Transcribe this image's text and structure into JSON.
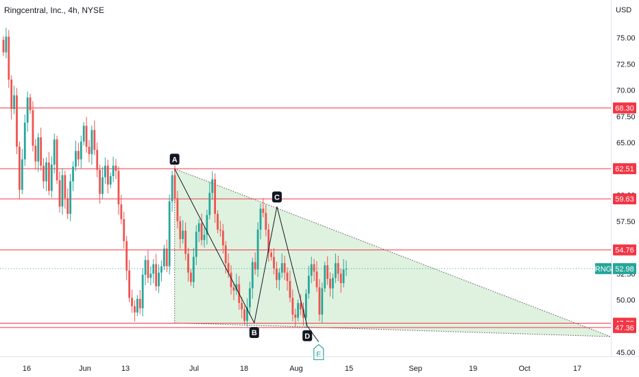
{
  "header": {
    "title": "Ringcentral, Inc., 4h, NYSE",
    "currency": "USD"
  },
  "chart_data": {
    "type": "candlestick",
    "ylim": [
      44.5,
      78.5
    ],
    "y_ticks": [
      45,
      47.5,
      50,
      52.5,
      55,
      57.5,
      60,
      62.5,
      65,
      67.5,
      70,
      72.5,
      75
    ],
    "y_tick_labels": [
      "45.00",
      "47.50",
      "50.00",
      "52.50",
      "55.00",
      "57.50",
      "60.00",
      "62.50",
      "65.00",
      "67.50",
      "70.00",
      "72.50",
      "75.00"
    ],
    "x_ticks": [
      "16",
      "Jun",
      "13",
      "Jul",
      "18",
      "Aug",
      "15",
      "Sep",
      "19",
      "Oct",
      "17"
    ],
    "horizontal_levels": [
      {
        "value": 68.3,
        "label": "68.30"
      },
      {
        "value": 62.51,
        "label": "62.51"
      },
      {
        "value": 59.63,
        "label": "59.63"
      },
      {
        "value": 54.76,
        "label": "54.76"
      },
      {
        "value": 47.78,
        "label": "47.78"
      },
      {
        "value": 47.36,
        "label": "47.36"
      }
    ],
    "current_price": {
      "symbol": "RNG",
      "value": 52.98,
      "label": "52.98"
    },
    "pattern_points": [
      {
        "label": "A",
        "date": "2022-06-24",
        "price": 62.5
      },
      {
        "label": "B",
        "date": "2022-07-15",
        "price": 47.8
      },
      {
        "label": "C",
        "date": "2022-07-21",
        "price": 58.9
      },
      {
        "label": "D",
        "date": "2022-07-29",
        "price": 47.5
      },
      {
        "label": "E",
        "date": "2022-08-01",
        "price": 46.0
      }
    ],
    "triangle": {
      "apex_date": "2022-10-17",
      "apex_price": 46.5,
      "upper_start": 62.5,
      "lower_start": 47.8
    },
    "closes": [
      73.6,
      75.1,
      71.0,
      68.2,
      69.5,
      64.6,
      60.5,
      63.4,
      66.9,
      69.3,
      68.1,
      64.7,
      63.2,
      65.5,
      62.8,
      61.3,
      63.1,
      60.4,
      62.9,
      65.3,
      61.4,
      58.9,
      61.9,
      59.7,
      58.2,
      61.3,
      62.7,
      64.2,
      63.4,
      65.1,
      66.6,
      64.6,
      63.9,
      66.2,
      64.3,
      62.4,
      60.1,
      61.7,
      62.8,
      61.0,
      61.8,
      62.8,
      62.3,
      59.1,
      57.7,
      55.6,
      52.8,
      50.2,
      49.4,
      48.8,
      50.1,
      49.2,
      52.4,
      53.8,
      52.1,
      52.5,
      53.4,
      51.3,
      52.6,
      53.2,
      54.9,
      53.2,
      59.4,
      61.9,
      59.7,
      57.5,
      55.8,
      56.6,
      54.4,
      52.6,
      51.7,
      54.1,
      56.5,
      57.3,
      55.7,
      56.2,
      58.1,
      60.2,
      61.5,
      58.2,
      56.7,
      56.6,
      55.2,
      53.5,
      52.6,
      51.2,
      50.9,
      51.5,
      49.7,
      49.1,
      48.0,
      49.3,
      51.1,
      53.6,
      52.9,
      56.7,
      58.7,
      58.3,
      56.7,
      54.5,
      54.1,
      53.0,
      51.9,
      52.6,
      53.5,
      52.6,
      51.8,
      50.2,
      48.6,
      48.3,
      49.7,
      49.1,
      48.3,
      50.6,
      52.3,
      53.4,
      52.7,
      51.2,
      48.6,
      51.1,
      53.3,
      52.0,
      51.1,
      52.1,
      53.5,
      52.5,
      51.6,
      52.9,
      52.98
    ]
  }
}
